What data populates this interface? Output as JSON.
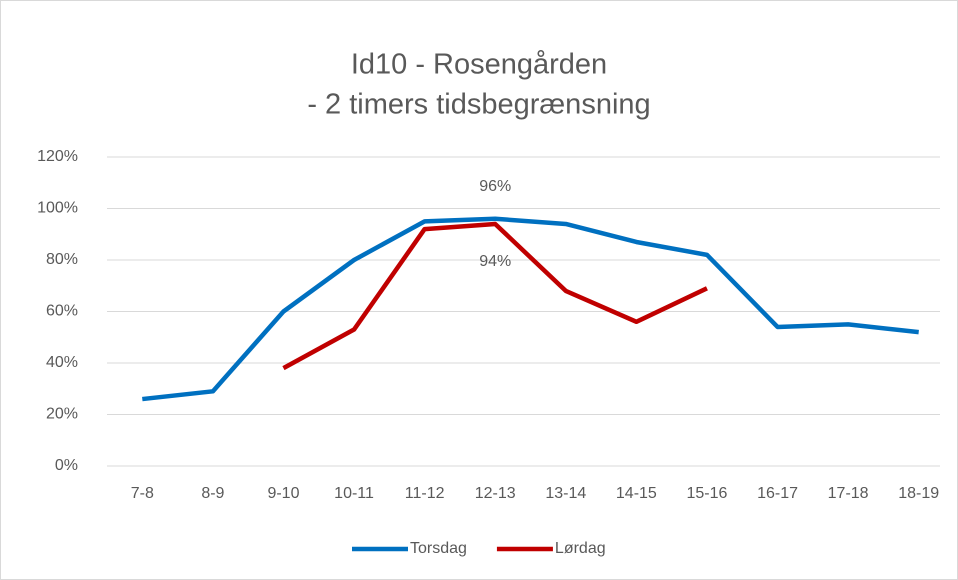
{
  "chart_data": {
    "type": "line",
    "title": [
      "Id10 - Rosengården",
      "- 2 timers tidsbegrænsning"
    ],
    "categories": [
      "7-8",
      "8-9",
      "9-10",
      "10-11",
      "11-12",
      "12-13",
      "13-14",
      "14-15",
      "15-16",
      "16-17",
      "17-18",
      "18-19"
    ],
    "series": [
      {
        "name": "Torsdag",
        "color": "#0070c0",
        "values": [
          26,
          29,
          60,
          80,
          95,
          96,
          94,
          87,
          82,
          54,
          55,
          52
        ],
        "value_labels": [
          null,
          null,
          null,
          null,
          null,
          "96%",
          null,
          null,
          null,
          null,
          null,
          null
        ]
      },
      {
        "name": "Lørdag",
        "color": "#c00000",
        "values": [
          null,
          null,
          38,
          53,
          92,
          94,
          68,
          56,
          69,
          null,
          null,
          null
        ],
        "value_labels": [
          null,
          null,
          null,
          null,
          null,
          "94%",
          null,
          null,
          null,
          null,
          null,
          null
        ]
      }
    ],
    "ylim": [
      0,
      120
    ],
    "yticks": [
      {
        "value": 0,
        "label": "0%"
      },
      {
        "value": 20,
        "label": "20%"
      },
      {
        "value": 40,
        "label": "40%"
      },
      {
        "value": 60,
        "label": "60%"
      },
      {
        "value": 80,
        "label": "80%"
      },
      {
        "value": 100,
        "label": "100%"
      },
      {
        "value": 120,
        "label": "120%"
      }
    ],
    "grid": true,
    "legend": "bottom"
  }
}
